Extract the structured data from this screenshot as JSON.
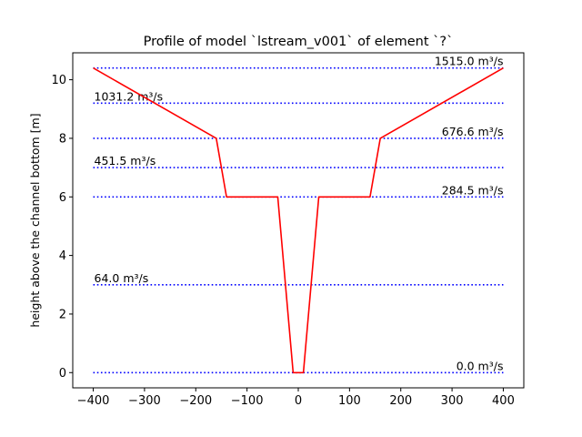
{
  "chart_data": {
    "type": "line",
    "title": "Profile of model `lstream_v001` of element `?`",
    "xlabel": "",
    "ylabel": "height above the channel bottom [m]",
    "xlim": [
      -440,
      440
    ],
    "ylim": [
      -0.52,
      10.92
    ],
    "xticks": [
      -400,
      -300,
      -200,
      -100,
      0,
      100,
      200,
      300,
      400
    ],
    "yticks": [
      0,
      2,
      4,
      6,
      8,
      10
    ],
    "grid": false,
    "profile": {
      "color": "#ff0000",
      "x": [
        -400,
        -160,
        -140,
        -40,
        -10,
        10,
        40,
        140,
        160,
        400
      ],
      "y": [
        10.4,
        8,
        6,
        6,
        0,
        0,
        6,
        6,
        8,
        10.4
      ]
    },
    "discharge_levels": {
      "color": "#0000ff",
      "x_range": [
        -400,
        400
      ],
      "levels": [
        {
          "height": 0,
          "label": "0.0 m³/s",
          "align": "right"
        },
        {
          "height": 3,
          "label": "64.0 m³/s",
          "align": "left"
        },
        {
          "height": 6,
          "label": "284.5 m³/s",
          "align": "right"
        },
        {
          "height": 7,
          "label": "451.5 m³/s",
          "align": "left"
        },
        {
          "height": 8,
          "label": "676.6 m³/s",
          "align": "right"
        },
        {
          "height": 9.2,
          "label": "1031.2 m³/s",
          "align": "left"
        },
        {
          "height": 10.4,
          "label": "1515.0 m³/s",
          "align": "right"
        }
      ]
    }
  }
}
